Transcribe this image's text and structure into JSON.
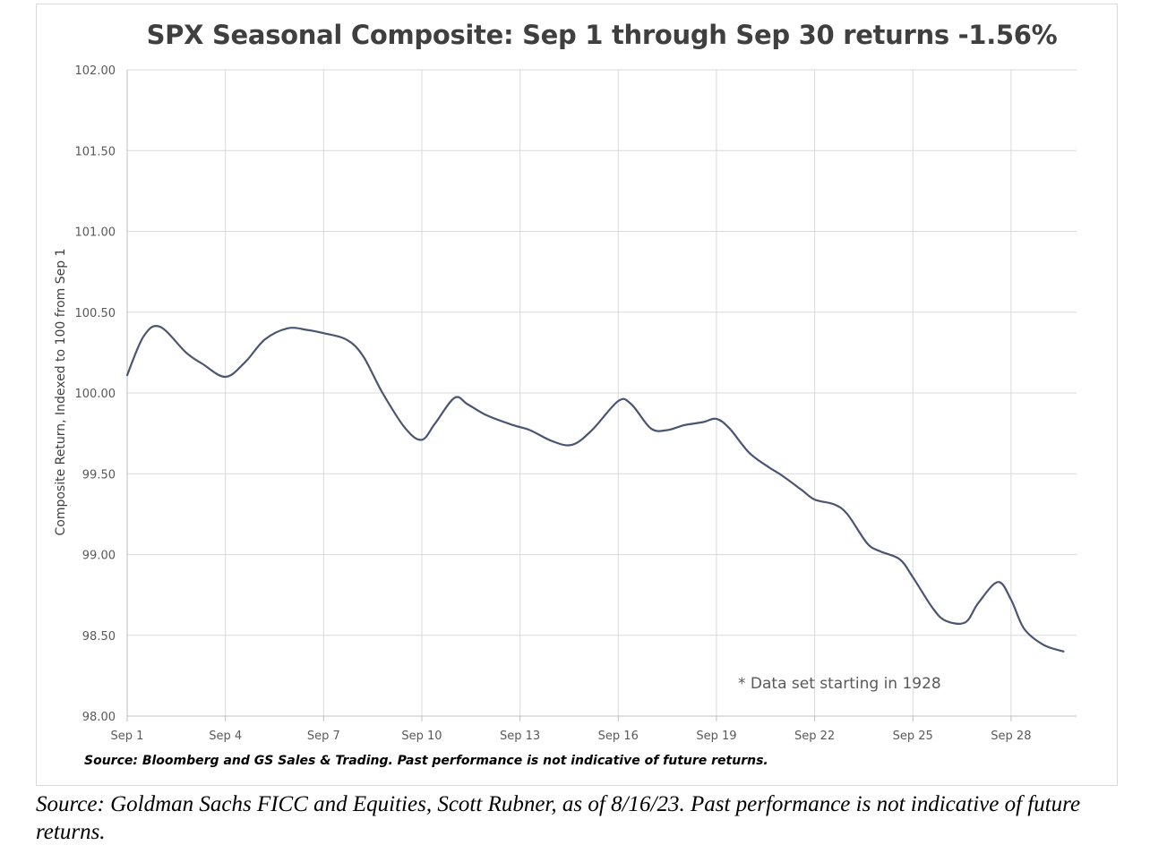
{
  "chart_data": {
    "type": "line",
    "title": "SPX Seasonal Composite: Sep 1 through Sep 30 returns -1.56%",
    "ylabel": "Composite Return, Indexed to 100 from Sep 1",
    "xlabel": "",
    "ylim": [
      98.0,
      102.0
    ],
    "yticks": [
      "102.00",
      "101.50",
      "101.00",
      "100.50",
      "100.00",
      "99.50",
      "99.00",
      "98.50",
      "98.00"
    ],
    "xticks": [
      "Sep 1",
      "Sep 4",
      "Sep 7",
      "Sep 10",
      "Sep 13",
      "Sep 16",
      "Sep 19",
      "Sep 22",
      "Sep 25",
      "Sep 28"
    ],
    "grid": true,
    "series_color": "#4a5570",
    "series": [
      {
        "x": [
          1,
          1.5,
          2,
          2.8,
          3.3,
          4,
          4.6,
          5.2,
          5.9,
          6.5,
          7,
          7.7,
          8.2,
          8.8,
          9.5,
          10,
          10.4,
          11,
          11.4,
          12,
          12.8,
          13.3,
          14,
          14.6,
          15.2,
          16,
          16.4,
          17,
          17.5,
          18,
          18.6,
          19,
          19.4,
          20,
          20.6,
          21,
          21.6,
          22,
          22.6,
          23,
          23.6,
          24,
          24.6,
          25,
          25.6,
          26,
          26.6,
          27,
          27.6,
          28,
          28.4,
          29,
          29.6
        ],
        "values": [
          100.11,
          100.35,
          100.41,
          100.25,
          100.18,
          100.1,
          100.19,
          100.33,
          100.4,
          100.39,
          100.37,
          100.33,
          100.23,
          100.0,
          99.78,
          99.71,
          99.81,
          99.97,
          99.93,
          99.86,
          99.8,
          99.77,
          99.7,
          99.68,
          99.77,
          99.95,
          99.93,
          99.78,
          99.77,
          99.8,
          99.82,
          99.84,
          99.78,
          99.63,
          99.54,
          99.49,
          99.4,
          99.34,
          99.31,
          99.25,
          99.07,
          99.02,
          98.97,
          98.86,
          98.67,
          98.59,
          98.58,
          98.7,
          98.83,
          98.72,
          98.54,
          98.44,
          98.4
        ]
      }
    ],
    "annotation": "* Data set starting in 1928",
    "source": "Source: Bloomberg and GS Sales & Trading. Past performance is not indicative of future returns."
  },
  "caption": "Source: Goldman Sachs FICC and Equities, Scott Rubner,  as of 8/16/23. Past performance is not indicative of future returns."
}
